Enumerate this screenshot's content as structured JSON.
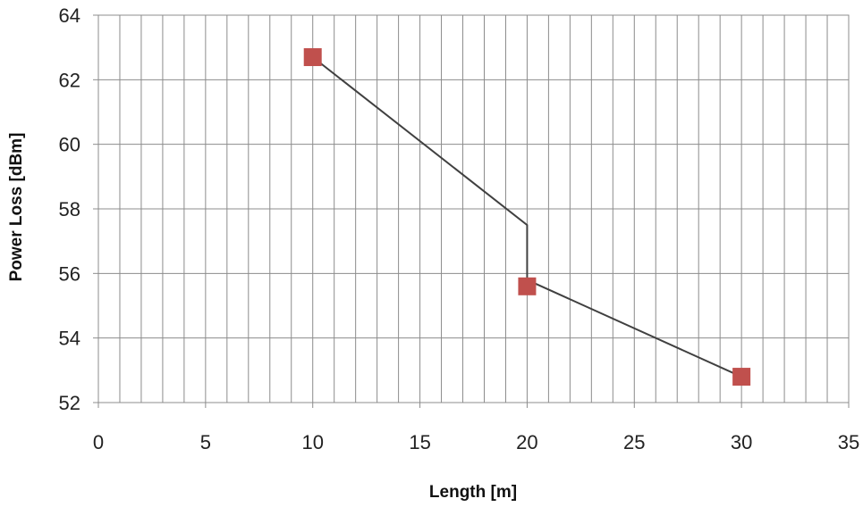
{
  "chart_data": {
    "type": "scatter",
    "title": "",
    "xlabel": "Length [m]",
    "ylabel": "Power Loss [dBm]",
    "xlim": [
      0,
      35
    ],
    "ylim": [
      52,
      64
    ],
    "x_ticks": [
      0,
      5,
      10,
      15,
      20,
      25,
      30,
      35
    ],
    "y_ticks": [
      52,
      54,
      56,
      58,
      60,
      62,
      64
    ],
    "x_minor_step": 1,
    "y_minor_step": 2,
    "grid": true,
    "series": [
      {
        "points": [
          {
            "x": 10,
            "y": 62.7
          },
          {
            "x": 20,
            "y": 55.6
          },
          {
            "x": 30,
            "y": 52.8
          }
        ],
        "marker": "square",
        "color": "#c0504d"
      }
    ],
    "line": {
      "points": [
        {
          "x": 10,
          "y": 62.7
        },
        {
          "x": 20,
          "y": 57.5
        },
        {
          "x": 20,
          "y": 55.8
        },
        {
          "x": 30,
          "y": 52.8
        }
      ],
      "color": "#404040"
    }
  }
}
